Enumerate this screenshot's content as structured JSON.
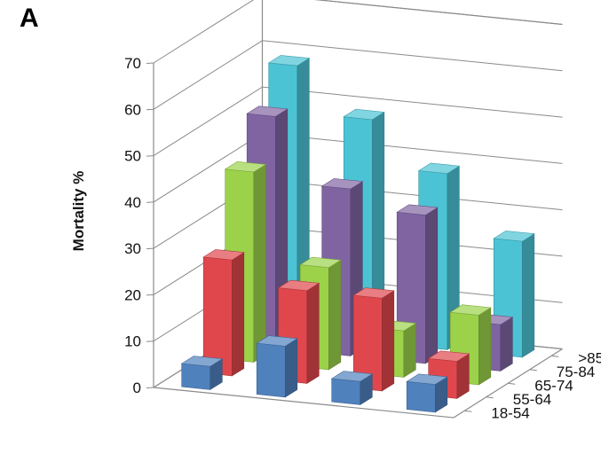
{
  "panel_label": "A",
  "chart_data": {
    "type": "bar",
    "subtype": "3d-column",
    "ylabel": "Mortality %",
    "ylim": [
      0,
      70
    ],
    "yticks": [
      0,
      10,
      20,
      30,
      40,
      50,
      60,
      70
    ],
    "grid": true,
    "categories": [
      "",
      "",
      "",
      ""
    ],
    "series": [
      {
        "name": "18-54",
        "color": "#4f81bd",
        "values": [
          5,
          11,
          5,
          6
        ]
      },
      {
        "name": "55-64",
        "color": "#e0474c",
        "values": [
          25,
          20,
          20,
          8
        ]
      },
      {
        "name": "65-74",
        "color": "#9bd24a",
        "values": [
          41,
          22,
          10,
          15
        ]
      },
      {
        "name": "75-84",
        "color": "#8064a2",
        "values": [
          50,
          36,
          32,
          10
        ]
      },
      {
        "name": ">85",
        "color": "#4bc3d4",
        "values": [
          58,
          48,
          38,
          25
        ]
      }
    ]
  }
}
